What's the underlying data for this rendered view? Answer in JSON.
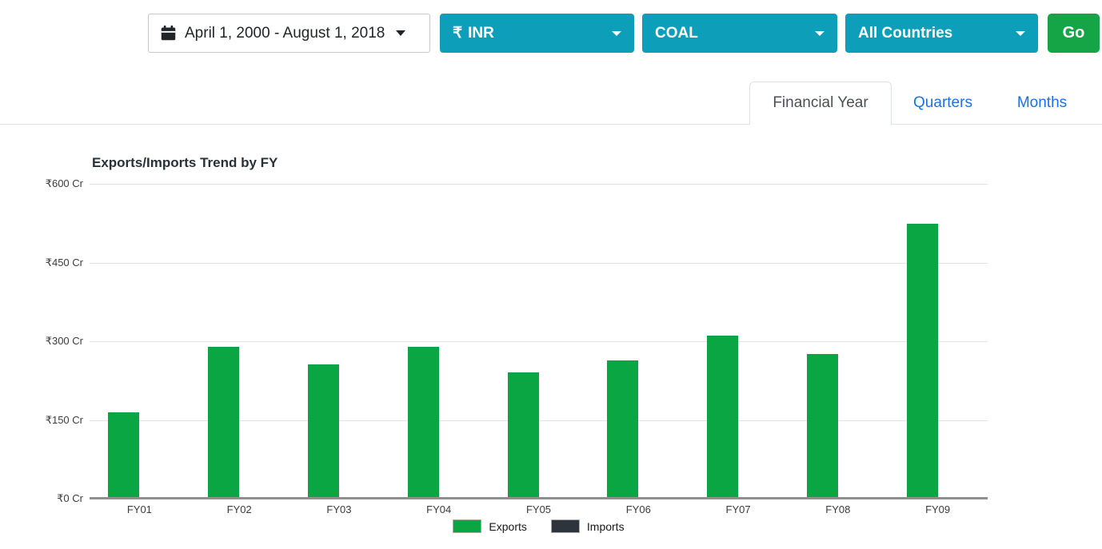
{
  "toolbar": {
    "date_range": "April 1, 2000 - August 1, 2018",
    "currency_symbol": "₹",
    "currency": "INR",
    "commodity": "COAL",
    "country": "All Countries",
    "go_label": "Go",
    "select_color": "#0d9fba",
    "go_color": "#16a546"
  },
  "tabs": [
    {
      "label": "Financial Year",
      "active": true
    },
    {
      "label": "Quarters",
      "active": false
    },
    {
      "label": "Months",
      "active": false
    }
  ],
  "chart_data": {
    "type": "bar",
    "title": "Exports/Imports Trend by FY",
    "categories": [
      "FY01",
      "FY02",
      "FY03",
      "FY04",
      "FY05",
      "FY06",
      "FY07",
      "FY08",
      "FY09"
    ],
    "series": [
      {
        "name": "Exports",
        "color": "#0aa643",
        "values": [
          165,
          290,
          256,
          290,
          241,
          264,
          311,
          276,
          524
        ]
      },
      {
        "name": "Imports",
        "color": "#2e343b",
        "values": [
          2,
          2,
          2,
          2,
          2,
          2,
          2,
          2,
          2
        ]
      }
    ],
    "yticks": [
      {
        "label": "₹600 Cr",
        "value": 600
      },
      {
        "label": "₹450 Cr",
        "value": 450
      },
      {
        "label": "₹300 Cr",
        "value": 300
      },
      {
        "label": "₹150 Cr",
        "value": 150
      },
      {
        "label": "₹0 Cr",
        "value": 0
      }
    ],
    "ylim": [
      0,
      600
    ],
    "unit": "Cr",
    "currency": "INR",
    "grid": true,
    "legend_position": "bottom"
  }
}
